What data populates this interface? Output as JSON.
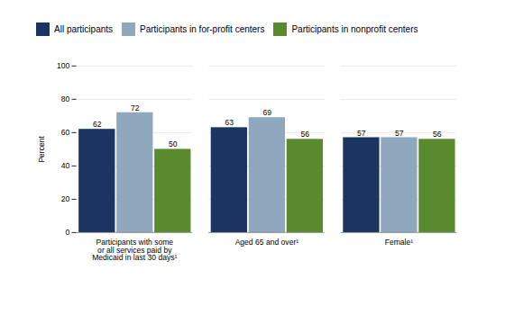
{
  "chart_data": {
    "type": "bar",
    "categories": [
      "Participants with some\nor all services paid by\nMedicaid in last 30 days¹",
      "Aged 65 and over¹",
      "Female¹"
    ],
    "series": [
      {
        "name": "All participants",
        "color": "#1c3461",
        "values": [
          62,
          63,
          57
        ]
      },
      {
        "name": "Participants in for-profit centers",
        "color": "#8fa8be",
        "values": [
          72,
          69,
          57
        ]
      },
      {
        "name": "Participants in nonprofit centers",
        "color": "#5a8a2e",
        "values": [
          50,
          56,
          56
        ]
      }
    ],
    "ylabel": "Percent",
    "ylim": [
      0,
      100
    ],
    "yticks": [
      0,
      20,
      40,
      60,
      80,
      100
    ],
    "grid": true,
    "legend": "top",
    "data_labels": true
  }
}
